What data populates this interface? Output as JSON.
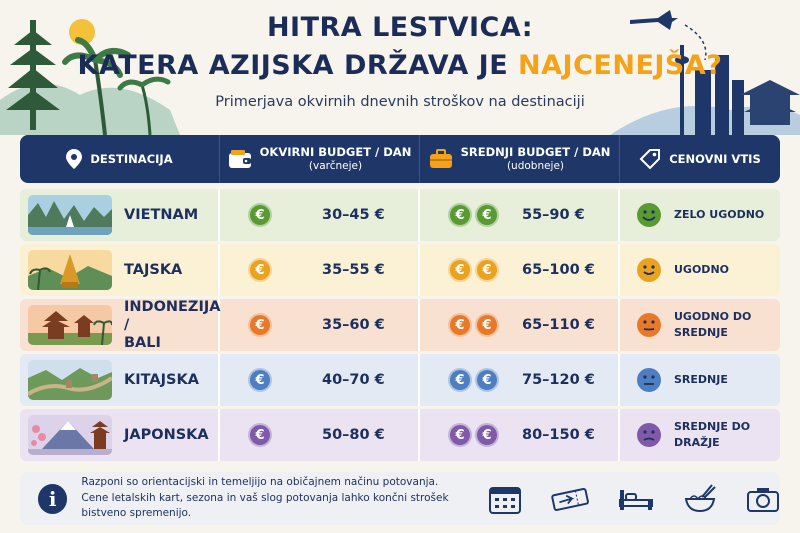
{
  "title": {
    "line1": "HITRA LESTVICA:",
    "line2_prefix": "KATERA AZIJSKA DRŽAVA JE ",
    "line2_highlight": "NAJCENEJŠA?"
  },
  "subtitle": "Primerjava okvirnih dnevnih stroškov na destinaciji",
  "header": {
    "destination": "DESTINACIJA",
    "budget_line1": "OKVIRNI BUDGET / DAN",
    "budget_line2": "(varčneje)",
    "mid_line1": "SREDNJI BUDGET / DAN",
    "mid_line2": "(udobneje)",
    "impression": "CENOVNI VTIS"
  },
  "rows": [
    {
      "country": "VIETNAM",
      "budget": "30–45 €",
      "mid": "55–90 €",
      "vtis": [
        "ZELO UGODNO"
      ],
      "mood": "very-happy"
    },
    {
      "country": "TAJSKA",
      "budget": "35–55 €",
      "mid": "65–100 €",
      "vtis": [
        "UGODNO"
      ],
      "mood": "happy"
    },
    {
      "country": "INDONEZIJA / BALI",
      "country_lines": [
        "INDONEZIJA /",
        "BALI"
      ],
      "budget": "35–60 €",
      "mid": "65–110 €",
      "vtis": [
        "UGODNO DO",
        "SREDNJE"
      ],
      "mood": "neutral-smile"
    },
    {
      "country": "KITAJSKA",
      "budget": "40–70 €",
      "mid": "75–120 €",
      "vtis": [
        "SREDNJE"
      ],
      "mood": "neutral"
    },
    {
      "country": "JAPONSKA",
      "budget": "50–80 €",
      "mid": "80–150 €",
      "vtis": [
        "SREDNJE DO",
        "DRAŽJE"
      ],
      "mood": "slightly-sad"
    }
  ],
  "currency_symbol": "€",
  "footer": {
    "note": "Razponi so orientacijski in temeljijo na običajnem načinu potovanja. Cene letalskih kart, sezona in vaš slog potovanja lahko končni strošek bistveno spremenijo.",
    "info_symbol": "i",
    "icons": [
      "calendar-icon",
      "plane-ticket-icon",
      "bed-icon",
      "noodle-bowl-icon",
      "camera-icon"
    ]
  },
  "colors": {
    "navy": "#1e3768",
    "highlight": "#f3a21a",
    "row_bgs": [
      "#e7efdb",
      "#fbf1d4",
      "#f9e1d1",
      "#e3eaf4",
      "#ebe3f1"
    ],
    "coin_colors": [
      "#5a9a32",
      "#eba21e",
      "#e9792a",
      "#4d7fc0",
      "#7e5aa8"
    ],
    "face_colors": [
      "#5a9a32",
      "#eba21e",
      "#e9792a",
      "#4d7fc0",
      "#7e5aa8"
    ]
  }
}
